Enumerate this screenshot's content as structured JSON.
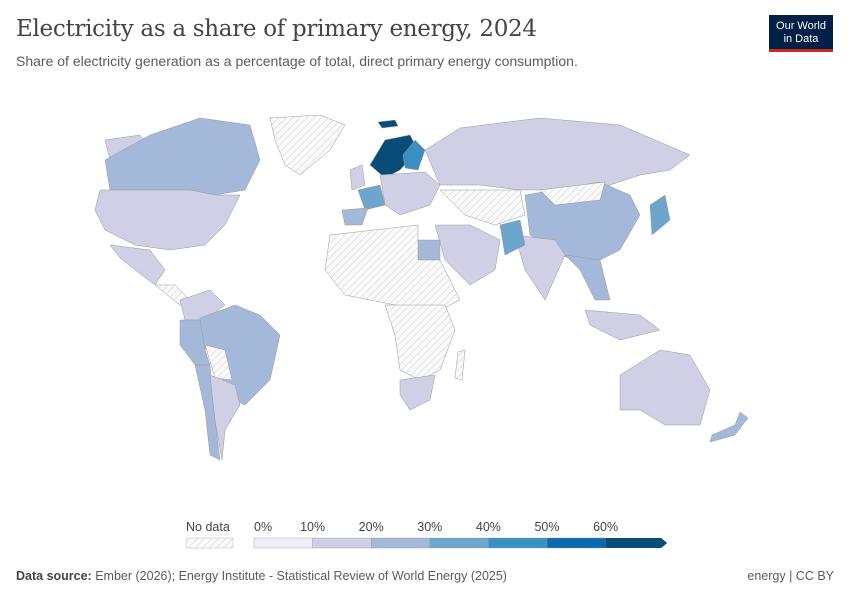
{
  "header": {
    "title": "Electricity as a share of primary energy, 2024",
    "subtitle": "Share of electricity generation as a percentage of total, direct primary energy consumption.",
    "logo_line1": "Our World",
    "logo_line2": "in Data"
  },
  "legend": {
    "no_data_label": "No data",
    "ticks": [
      "0%",
      "10%",
      "20%",
      "30%",
      "40%",
      "50%",
      "60%"
    ],
    "bins": [
      {
        "range": "0-10%",
        "color": "#eeedf5"
      },
      {
        "range": "10-20%",
        "color": "#cfcfe5"
      },
      {
        "range": "20-30%",
        "color": "#a4b9da"
      },
      {
        "range": "30-40%",
        "color": "#6ea5cd"
      },
      {
        "range": "40-50%",
        "color": "#3b8fc1"
      },
      {
        "range": "50-60%",
        "color": "#0b6aac"
      },
      {
        "range": ">60%",
        "color": "#0a4c78"
      }
    ],
    "no_data_color": "#f2f2f2"
  },
  "footer": {
    "source_label": "Data source:",
    "source": "Ember (2026); Energy Institute - Statistical Review of World Energy (2025)",
    "license": "energy | CC BY"
  }
}
